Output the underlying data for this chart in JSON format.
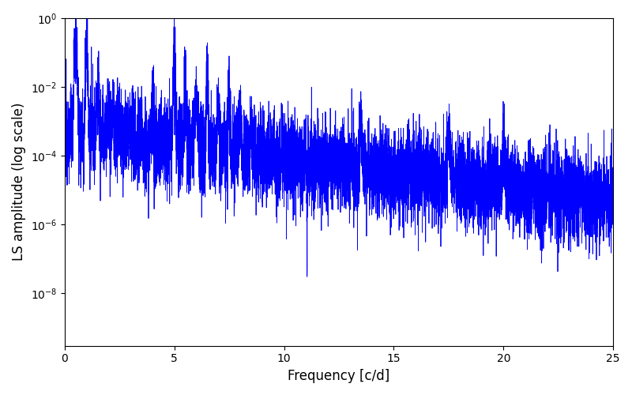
{
  "xlabel": "Frequency [c/d]",
  "ylabel": "LS amplitude (log scale)",
  "line_color": "#0000ff",
  "xlim": [
    0,
    25
  ],
  "ylim": [
    3e-10,
    1.0
  ],
  "background_color": "#ffffff",
  "figsize": [
    8.0,
    5.0
  ],
  "dpi": 100,
  "yscale": "log",
  "seed": 12345,
  "n_points": 8000,
  "freq_max": 25.0,
  "linewidth": 0.6
}
